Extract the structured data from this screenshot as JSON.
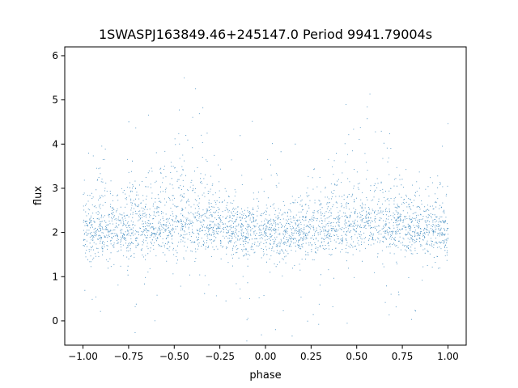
{
  "chart_data": {
    "type": "scatter",
    "title": "1SWASPJ163849.46+245147.0 Period 9941.79004s",
    "xlabel": "phase",
    "ylabel": "flux",
    "xlim": [
      -1.1,
      1.1
    ],
    "ylim": [
      -0.55,
      6.2
    ],
    "x_ticks": [
      -1.0,
      -0.75,
      -0.5,
      -0.25,
      0.0,
      0.25,
      0.5,
      0.75,
      1.0
    ],
    "x_tick_labels": [
      "−1.00",
      "−0.75",
      "−0.50",
      "−0.25",
      "0.00",
      "0.25",
      "0.50",
      "0.75",
      "1.00"
    ],
    "y_ticks": [
      0,
      1,
      2,
      3,
      4,
      5,
      6
    ],
    "y_tick_labels": [
      "0",
      "1",
      "2",
      "3",
      "4",
      "5",
      "6"
    ],
    "grid": false,
    "legend": "none",
    "marker_color": "#1f77b4",
    "x_range": [
      -1.0,
      1.0
    ],
    "series": [
      {
        "x": [
          -1.0,
          -0.9,
          -0.8,
          -0.7,
          -0.6,
          -0.5,
          -0.45,
          -0.4,
          -0.3,
          -0.2,
          -0.1,
          0.0,
          0.1,
          0.2,
          0.3,
          0.4,
          0.5,
          0.55,
          0.6,
          0.7,
          0.8,
          0.9,
          1.0
        ],
        "y_base": [
          1.95,
          1.95,
          1.95,
          2.0,
          2.05,
          2.1,
          2.1,
          2.1,
          2.05,
          2.0,
          1.95,
          1.9,
          1.9,
          1.95,
          2.0,
          2.05,
          2.1,
          2.1,
          2.05,
          2.0,
          1.95,
          1.95,
          1.95
        ],
        "y_bright": [
          3.2,
          2.9,
          2.9,
          2.8,
          3.3,
          3.9,
          4.1,
          3.9,
          3.3,
          2.7,
          2.5,
          2.4,
          2.5,
          2.7,
          2.9,
          3.6,
          4.0,
          4.1,
          3.8,
          3.2,
          2.9,
          2.9,
          3.2
        ]
      }
    ]
  }
}
